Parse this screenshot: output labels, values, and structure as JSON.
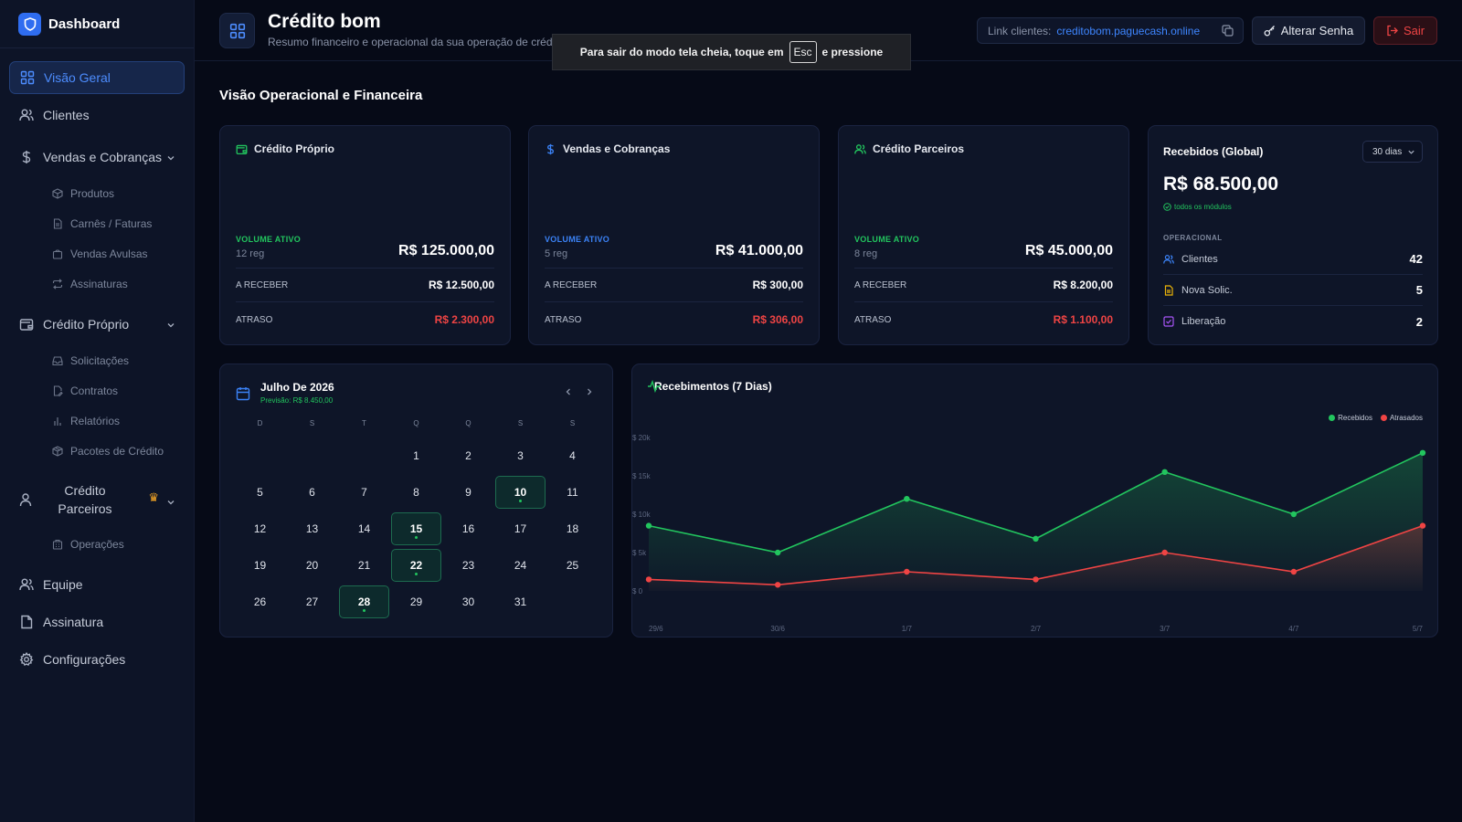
{
  "app": {
    "brand": "Dashboard"
  },
  "sidebar": {
    "items": [
      {
        "label": "Visão Geral"
      },
      {
        "label": "Clientes"
      },
      {
        "label": "Vendas e Cobranças"
      },
      {
        "label": "Crédito Próprio"
      },
      {
        "label": "Crédito Parceiros"
      },
      {
        "label": "Equipe"
      },
      {
        "label": "Assinatura"
      },
      {
        "label": "Configurações"
      }
    ],
    "vendas_sub": [
      "Produtos",
      "Carnês / Faturas",
      "Vendas Avulsas",
      "Assinaturas"
    ],
    "credito_sub": [
      "Solicitações",
      "Contratos",
      "Relatórios",
      "Pacotes de Crédito"
    ],
    "parceiros_sub": [
      "Operações"
    ]
  },
  "header": {
    "title": "Crédito bom",
    "subtitle": "Resumo financeiro e operacional da sua operação de crédito",
    "link_label": "Link clientes:",
    "link_url": "creditobom.paguecash.online",
    "change_password": "Alterar Senha",
    "exit": "Sair"
  },
  "toast": {
    "before": "Para sair do modo tela cheia, toque em",
    "key": "Esc",
    "after": "e pressione"
  },
  "section": {
    "title": "Visão Operacional e Financeira"
  },
  "cards": [
    {
      "title": "Crédito Próprio",
      "vol_label": "VOLUME ATIVO",
      "reg": "12 reg",
      "amount": "R$ 125.000,00",
      "receber_label": "A RECEBER",
      "receber": "R$ 12.500,00",
      "atraso_label": "ATRASO",
      "atraso": "R$ 2.300,00",
      "accent": "#22c55e"
    },
    {
      "title": "Vendas e Cobranças",
      "vol_label": "VOLUME ATIVO",
      "reg": "5 reg",
      "amount": "R$ 41.000,00",
      "receber_label": "A RECEBER",
      "receber": "R$ 300,00",
      "atraso_label": "ATRASO",
      "atraso": "R$ 306,00",
      "accent": "#3b82f6"
    },
    {
      "title": "Crédito Parceiros",
      "vol_label": "VOLUME ATIVO",
      "reg": "8 reg",
      "amount": "R$ 45.000,00",
      "receber_label": "A RECEBER",
      "receber": "R$ 8.200,00",
      "atraso_label": "ATRASO",
      "atraso": "R$ 1.100,00",
      "accent": "#22c55e"
    }
  ],
  "global": {
    "title": "Recebidos (Global)",
    "period": "30 dias",
    "amount": "R$ 68.500,00",
    "modules": "todos os módulos",
    "oper_label": "OPERACIONAL",
    "rows": [
      {
        "label": "Clientes",
        "value": "42",
        "icon": "users-icon"
      },
      {
        "label": "Nova Solic.",
        "value": "5",
        "icon": "file-icon"
      },
      {
        "label": "Liberação",
        "value": "2",
        "icon": "check-square-icon"
      }
    ]
  },
  "calendar": {
    "title": "Julho De 2026",
    "forecast": "Previsão: R$ 8.450,00",
    "weekdays": [
      "D",
      "S",
      "T",
      "Q",
      "Q",
      "S",
      "S"
    ],
    "start_offset": 3,
    "days": 31,
    "highlighted": [
      10,
      15,
      22,
      28
    ]
  },
  "chart_data": {
    "type": "line",
    "title": "Recebimentos (7 Dias)",
    "categories": [
      "29/6",
      "30/6",
      "1/7",
      "2/7",
      "3/7",
      "4/7",
      "5/7"
    ],
    "series": [
      {
        "name": "Recebidos",
        "values": [
          8500,
          5000,
          12000,
          6800,
          15500,
          10000,
          18000
        ],
        "color": "#22c55e"
      },
      {
        "name": "Atrasados",
        "values": [
          1500,
          800,
          2500,
          1500,
          5000,
          2500,
          8500
        ],
        "color": "#ef4444"
      }
    ],
    "yticks": [
      "$ 0",
      "$ 5k",
      "$ 10k",
      "$ 15k",
      "$ 20k"
    ],
    "ylim": [
      0,
      20000
    ],
    "legend_position": "top-right"
  }
}
